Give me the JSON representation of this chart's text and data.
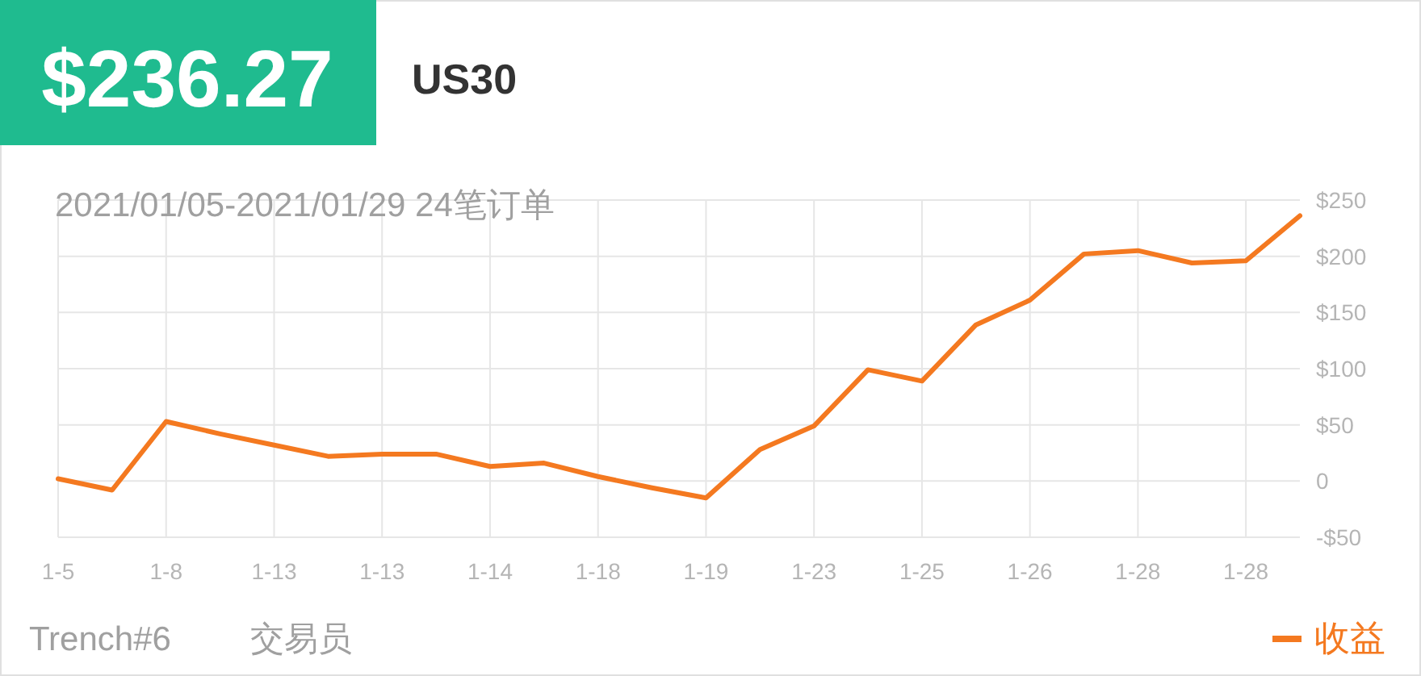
{
  "chart_data": {
    "type": "line",
    "title": "$236.27",
    "subtitle": "US30",
    "annotations": [
      "2021/01/05-2021/01/29 24笔订单",
      "Trench#6",
      "交易员"
    ],
    "categories": [
      "1-5",
      null,
      "1-8",
      null,
      "1-13",
      null,
      "1-13",
      null,
      "1-14",
      null,
      "1-18",
      null,
      "1-19",
      null,
      "1-23",
      null,
      "1-25",
      null,
      "1-26",
      null,
      "1-28",
      null,
      "1-28",
      null
    ],
    "series": [
      {
        "name": "收益",
        "color": "#f47920",
        "values": [
          2,
          -8,
          53,
          42,
          32,
          22,
          24,
          24,
          13,
          16,
          4,
          -6,
          -15,
          28,
          49,
          99,
          89,
          139,
          161,
          202,
          205,
          194,
          196,
          236
        ]
      }
    ],
    "ylim": [
      -50,
      250
    ],
    "yticks": [
      {
        "value": -50,
        "label": "-$50"
      },
      0,
      {
        "value": 50,
        "label": "$50"
      },
      {
        "value": 100,
        "label": "$100"
      },
      {
        "value": 150,
        "label": "$150"
      },
      {
        "value": 200,
        "label": "$200"
      },
      {
        "value": 250,
        "label": "$250"
      }
    ],
    "grid": true,
    "legend": "bottom right"
  }
}
